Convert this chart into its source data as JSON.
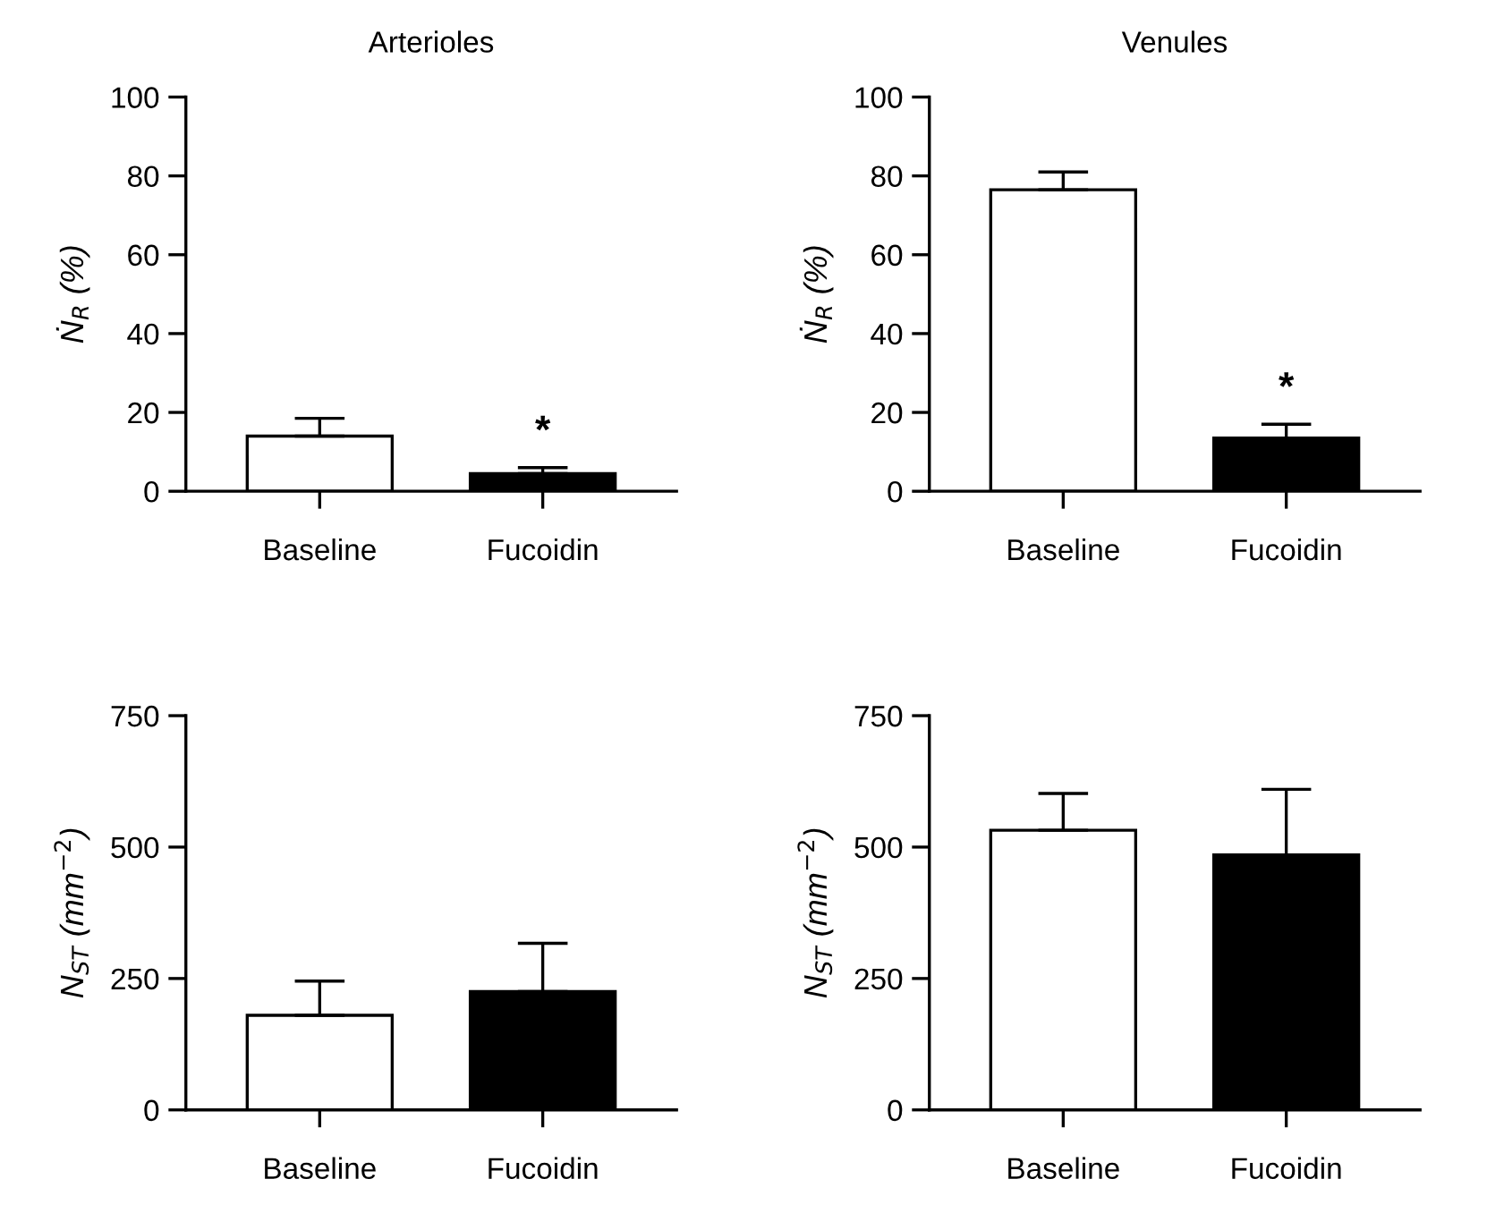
{
  "chart_data": [
    {
      "type": "bar",
      "title": "Arterioles",
      "ylabel": "Ṅ$_{R}$ (%)",
      "categories": [
        "Baseline",
        "Fucoidin"
      ],
      "values": [
        14,
        4.5
      ],
      "colors": [
        "#ffffff",
        "#000000"
      ],
      "errors": [
        [
          14,
          18.5
        ],
        [
          4.5,
          6
        ]
      ],
      "ylim": [
        0,
        100
      ],
      "yticks": [
        0,
        20,
        40,
        60,
        80,
        100
      ],
      "grid": false,
      "annotations": [
        "*"
      ]
    },
    {
      "type": "bar",
      "title": "Venules",
      "ylabel": "Ṅ$_{R}$ (%)",
      "categories": [
        "Baseline",
        "Fucoidin"
      ],
      "values": [
        76.5,
        13.5
      ],
      "colors": [
        "#ffffff",
        "#000000"
      ],
      "errors": [
        [
          76.5,
          81
        ],
        [
          13.5,
          17
        ]
      ],
      "ylim": [
        0,
        100
      ],
      "yticks": [
        0,
        20,
        40,
        60,
        80,
        100
      ],
      "grid": false,
      "annotations": [
        "*"
      ]
    },
    {
      "type": "bar",
      "ylabel": "N$_{ST}$ (mm$^{−2}$)",
      "categories": [
        "Baseline",
        "Fucoidin"
      ],
      "values": [
        180,
        225
      ],
      "colors": [
        "#ffffff",
        "#000000"
      ],
      "errors": [
        [
          180,
          245
        ],
        [
          225,
          317
        ]
      ],
      "ylim": [
        0,
        750
      ],
      "yticks": [
        0,
        250,
        500,
        750
      ],
      "grid": false
    },
    {
      "type": "bar",
      "ylabel": "N$_{ST}$ (mm$^{−2}$)",
      "categories": [
        "Baseline",
        "Fucoidin"
      ],
      "values": [
        532,
        485
      ],
      "colors": [
        "#ffffff",
        "#000000"
      ],
      "errors": [
        [
          532,
          602
        ],
        [
          485,
          610
        ]
      ],
      "ylim": [
        0,
        750
      ],
      "yticks": [
        0,
        250,
        500,
        750
      ],
      "grid": false
    }
  ]
}
